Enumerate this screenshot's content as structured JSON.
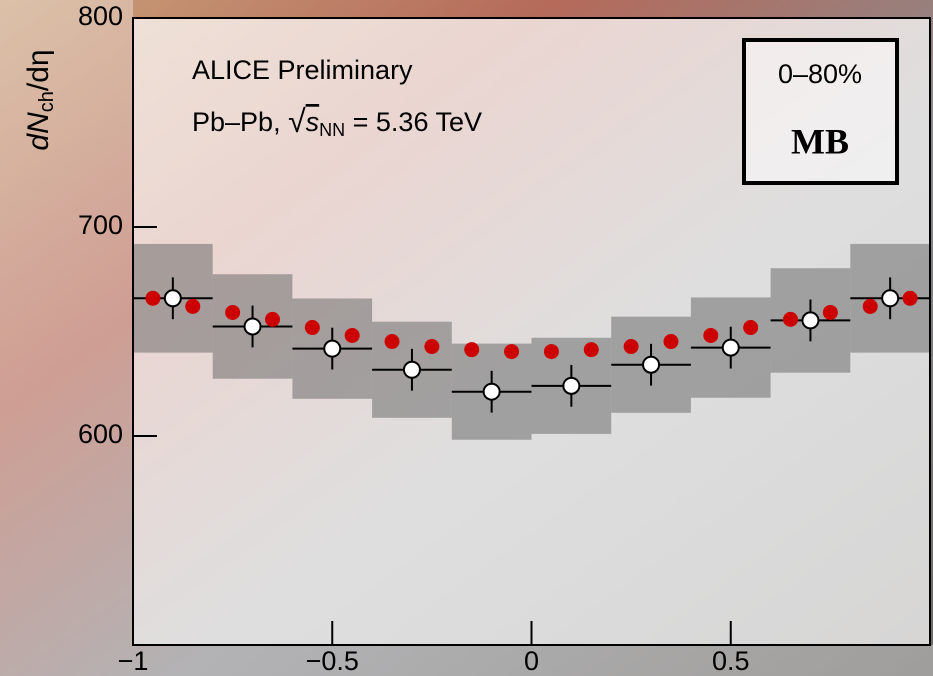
{
  "chart_data": {
    "type": "scatter",
    "y_label": {
      "main": "dN",
      "sub": "ch",
      "rest": "/dη"
    },
    "annotations": {
      "experiment": "ALICE Preliminary",
      "system": "Pb–Pb, ",
      "sqrt": "√",
      "s": "s",
      "s_sub": "NN",
      "energy": " = 5.36 TeV",
      "centrality": "0–80%",
      "trigger": "MB"
    },
    "xlim": [
      -1,
      1
    ],
    "ylim": [
      500,
      800
    ],
    "xticks": [
      {
        "value": -1,
        "label": "−1"
      },
      {
        "value": -0.5,
        "label": "−0.5"
      },
      0,
      0.5
    ],
    "yticks": [
      600,
      700,
      800
    ],
    "series": [
      {
        "color": "#000000",
        "marker": "open-circle",
        "band_color": "#6e6e6e",
        "x": [
          -0.9,
          -0.7,
          -0.5,
          -0.3,
          -0.1,
          0.1,
          0.3,
          0.5,
          0.7,
          0.9
        ],
        "xerr": [
          0.1,
          0.1,
          0.1,
          0.1,
          0.1,
          0.1,
          0.1,
          0.1,
          0.1,
          0.1
        ],
        "values": [
          665.9,
          652.4,
          641.8,
          631.7,
          621.2,
          624.0,
          634.1,
          642.3,
          655.3,
          665.9
        ],
        "yerr": [
          10,
          10,
          10,
          10,
          10,
          10,
          10,
          10,
          10,
          10
        ],
        "syserr": [
          26,
          25,
          24,
          23,
          23,
          23,
          23,
          24,
          25,
          26
        ]
      },
      {
        "color": "#cc0000",
        "marker": "filled-circle",
        "x": [
          -0.95,
          -0.85,
          -0.75,
          -0.65,
          -0.55,
          -0.45,
          -0.35,
          -0.25,
          -0.15,
          -0.05,
          0.05,
          0.15,
          0.25,
          0.35,
          0.45,
          0.55,
          0.65,
          0.75,
          0.85,
          0.95
        ],
        "values": [
          665.9,
          662.0,
          659.1,
          655.8,
          651.9,
          648.1,
          645.2,
          642.8,
          641.3,
          640.4,
          640.4,
          641.3,
          642.8,
          645.2,
          648.1,
          651.9,
          655.8,
          659.1,
          662.0,
          665.9
        ]
      }
    ]
  }
}
